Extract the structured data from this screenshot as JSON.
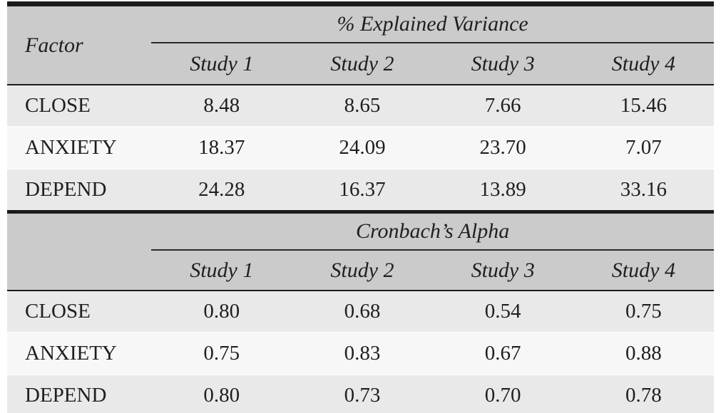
{
  "table": {
    "factor_header": "Factor",
    "sections": [
      {
        "title": "% Explained Variance",
        "columns": [
          "Study 1",
          "Study 2",
          "Study 3",
          "Study 4"
        ],
        "rows": [
          {
            "factor": "CLOSE",
            "values": [
              "8.48",
              "8.65",
              "7.66",
              "15.46"
            ]
          },
          {
            "factor": "ANXIETY",
            "values": [
              "18.37",
              "24.09",
              "23.70",
              "7.07"
            ]
          },
          {
            "factor": "DEPEND",
            "values": [
              "24.28",
              "16.37",
              "13.89",
              "33.16"
            ]
          }
        ]
      },
      {
        "title": "Cronbach’s Alpha",
        "columns": [
          "Study 1",
          "Study 2",
          "Study 3",
          "Study 4"
        ],
        "rows": [
          {
            "factor": "CLOSE",
            "values": [
              "0.80",
              "0.68",
              "0.54",
              "0.75"
            ]
          },
          {
            "factor": "ANXIETY",
            "values": [
              "0.75",
              "0.83",
              "0.67",
              "0.88"
            ]
          },
          {
            "factor": "DEPEND",
            "values": [
              "0.80",
              "0.73",
              "0.70",
              "0.78"
            ]
          }
        ]
      }
    ],
    "colors": {
      "header_bg": "#cbcbcb",
      "row_odd_bg": "#e9e9e9",
      "row_even_bg": "#f7f7f7",
      "border_black": "#1b1b1b",
      "text": "#1f1f1f"
    }
  },
  "chart_data": {
    "type": "table",
    "title": "",
    "row_header": "Factor",
    "panels": [
      {
        "panel_title": "% Explained Variance",
        "columns": [
          "Study 1",
          "Study 2",
          "Study 3",
          "Study 4"
        ],
        "rows": [
          {
            "label": "CLOSE",
            "values": [
              8.48,
              8.65,
              7.66,
              15.46
            ]
          },
          {
            "label": "ANXIETY",
            "values": [
              18.37,
              24.09,
              23.7,
              7.07
            ]
          },
          {
            "label": "DEPEND",
            "values": [
              24.28,
              16.37,
              13.89,
              33.16
            ]
          }
        ]
      },
      {
        "panel_title": "Cronbach’s Alpha",
        "columns": [
          "Study 1",
          "Study 2",
          "Study 3",
          "Study 4"
        ],
        "rows": [
          {
            "label": "CLOSE",
            "values": [
              0.8,
              0.68,
              0.54,
              0.75
            ]
          },
          {
            "label": "ANXIETY",
            "values": [
              0.75,
              0.83,
              0.67,
              0.88
            ]
          },
          {
            "label": "DEPEND",
            "values": [
              0.8,
              0.73,
              0.7,
              0.78
            ]
          }
        ]
      }
    ]
  }
}
